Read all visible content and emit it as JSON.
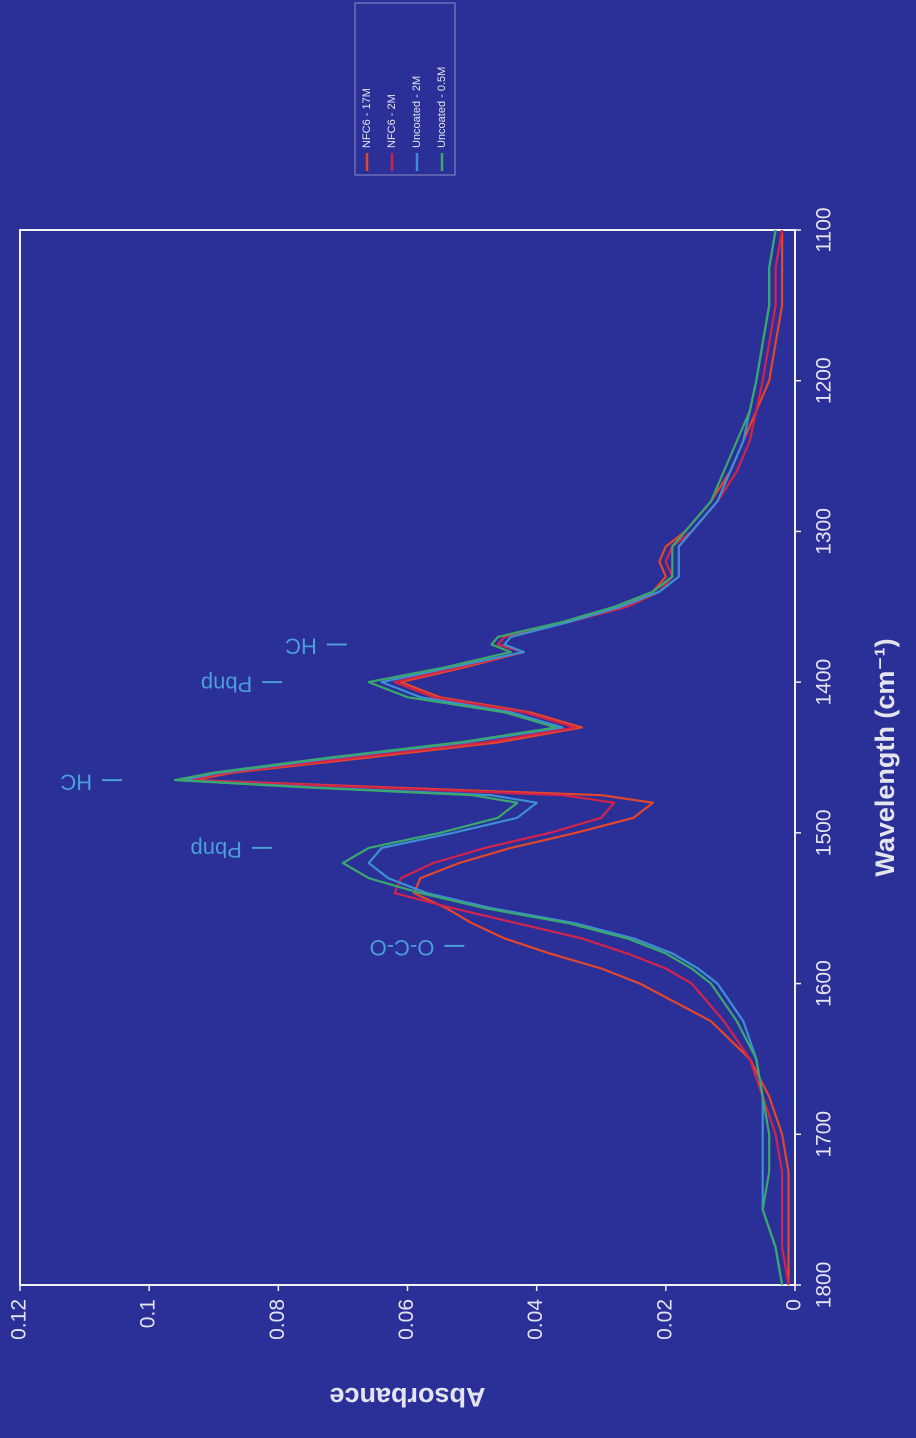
{
  "chart_data": {
    "type": "line",
    "x_label": "Wavelength (cm⁻¹)",
    "y_label": "Absorbance",
    "x": [
      1800,
      1775,
      1750,
      1725,
      1700,
      1675,
      1650,
      1625,
      1600,
      1590,
      1580,
      1570,
      1560,
      1550,
      1540,
      1530,
      1520,
      1510,
      1500,
      1490,
      1480,
      1475,
      1470,
      1465,
      1460,
      1450,
      1440,
      1430,
      1420,
      1410,
      1400,
      1390,
      1380,
      1375,
      1370,
      1360,
      1350,
      1340,
      1330,
      1320,
      1310,
      1300,
      1280,
      1260,
      1240,
      1220,
      1200,
      1175,
      1150,
      1125,
      1100
    ],
    "series": [
      {
        "name": "NFC6 - 17M",
        "color": "#e2472c",
        "values": [
          0.001,
          0.001,
          0.001,
          0.001,
          0.002,
          0.004,
          0.007,
          0.013,
          0.024,
          0.03,
          0.038,
          0.045,
          0.05,
          0.054,
          0.059,
          0.058,
          0.052,
          0.044,
          0.034,
          0.025,
          0.022,
          0.03,
          0.062,
          0.093,
          0.087,
          0.066,
          0.046,
          0.033,
          0.041,
          0.055,
          0.061,
          0.051,
          0.042,
          0.046,
          0.045,
          0.035,
          0.027,
          0.022,
          0.02,
          0.021,
          0.02,
          0.017,
          0.013,
          0.01,
          0.008,
          0.006,
          0.004,
          0.003,
          0.002,
          0.002,
          0.002
        ]
      },
      {
        "name": "NFC6 - 2M",
        "color": "#d2244a",
        "values": [
          0.001,
          0.002,
          0.002,
          0.002,
          0.003,
          0.005,
          0.007,
          0.011,
          0.016,
          0.02,
          0.026,
          0.033,
          0.043,
          0.053,
          0.062,
          0.061,
          0.056,
          0.048,
          0.038,
          0.03,
          0.028,
          0.036,
          0.065,
          0.094,
          0.088,
          0.068,
          0.048,
          0.034,
          0.042,
          0.056,
          0.062,
          0.052,
          0.042,
          0.046,
          0.045,
          0.035,
          0.026,
          0.021,
          0.019,
          0.02,
          0.019,
          0.016,
          0.012,
          0.009,
          0.007,
          0.006,
          0.005,
          0.004,
          0.003,
          0.003,
          0.002
        ]
      },
      {
        "name": "Uncoated - 2M",
        "color": "#3d8fd2",
        "values": [
          0.002,
          0.003,
          0.005,
          0.005,
          0.005,
          0.005,
          0.006,
          0.008,
          0.012,
          0.015,
          0.019,
          0.025,
          0.034,
          0.047,
          0.057,
          0.063,
          0.066,
          0.064,
          0.053,
          0.043,
          0.04,
          0.047,
          0.074,
          0.095,
          0.089,
          0.071,
          0.051,
          0.036,
          0.044,
          0.058,
          0.064,
          0.053,
          0.042,
          0.045,
          0.044,
          0.035,
          0.027,
          0.021,
          0.018,
          0.018,
          0.018,
          0.016,
          0.012,
          0.01,
          0.008,
          0.007,
          0.006,
          0.005,
          0.004,
          0.004,
          0.003
        ]
      },
      {
        "name": "Uncoated - 0.5M",
        "color": "#3aa86c",
        "values": [
          0.002,
          0.003,
          0.005,
          0.004,
          0.004,
          0.005,
          0.006,
          0.009,
          0.013,
          0.016,
          0.02,
          0.026,
          0.035,
          0.048,
          0.058,
          0.066,
          0.07,
          0.066,
          0.055,
          0.046,
          0.043,
          0.05,
          0.075,
          0.096,
          0.09,
          0.072,
          0.052,
          0.037,
          0.045,
          0.06,
          0.066,
          0.054,
          0.044,
          0.047,
          0.046,
          0.036,
          0.028,
          0.022,
          0.019,
          0.019,
          0.019,
          0.017,
          0.013,
          0.011,
          0.009,
          0.007,
          0.006,
          0.005,
          0.004,
          0.004,
          0.003
        ]
      }
    ],
    "xlim": [
      1800,
      1100
    ],
    "xticks": [
      1800,
      1700,
      1600,
      1500,
      1400,
      1300,
      1200,
      1100
    ],
    "ylim": [
      0,
      0.12
    ],
    "yticks": [
      0,
      0.02,
      0.04,
      0.06,
      0.08,
      0.1,
      0.12
    ],
    "annotations": [
      {
        "text": "O-C-O",
        "x": 1575,
        "y": 0.0546
      },
      {
        "text": "Pbnp",
        "x": 1510,
        "y": 0.0844
      },
      {
        "text": "HC",
        "x": 1465,
        "y": 0.1076
      },
      {
        "text": "Pbnp",
        "x": 1400,
        "y": 0.0828
      },
      {
        "text": "HC",
        "x": 1375,
        "y": 0.0728
      }
    ],
    "grid": false,
    "legend": "outside-top-right",
    "rotation": -90
  }
}
